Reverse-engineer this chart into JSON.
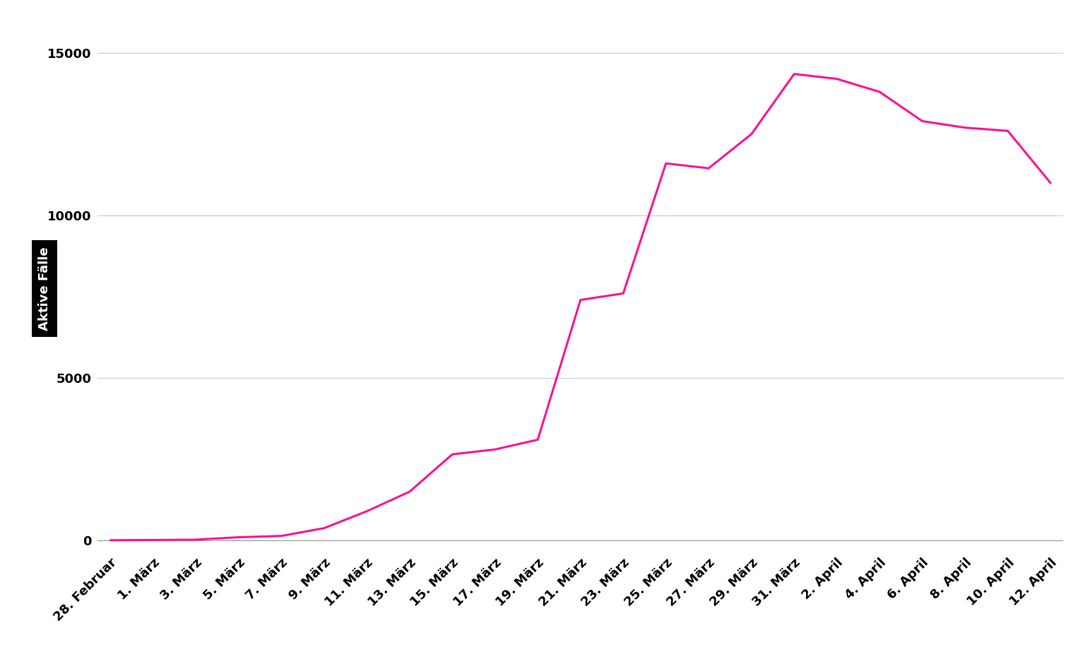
{
  "x_labels": [
    "28. Februar",
    "1. März",
    "3. März",
    "5. März",
    "7. März",
    "9. März",
    "11. März",
    "13. März",
    "15. März",
    "17. März",
    "19. März",
    "21. März",
    "23. März",
    "25. März",
    "27. März",
    "29. März",
    "31. März",
    "2. April",
    "4. April",
    "6. April",
    "8. April",
    "10. April",
    "12. April"
  ],
  "data_y": [
    10,
    15,
    25,
    100,
    140,
    380,
    900,
    1500,
    2650,
    2800,
    3100,
    7400,
    7600,
    11600,
    11450,
    12500,
    14350,
    14200,
    13800,
    12900,
    12700,
    12600,
    11000
  ],
  "line_color": "#FF1493",
  "ylabel": "Aktive Fälle",
  "ylabel_bg": "#000000",
  "ylabel_color": "#ffffff",
  "yticks": [
    0,
    5000,
    10000,
    15000
  ],
  "ylim": [
    -300,
    15800
  ],
  "grid_color": "#cccccc",
  "background_color": "#ffffff",
  "tick_fontsize": 13,
  "ylabel_fontsize": 13,
  "line_width": 2.2
}
